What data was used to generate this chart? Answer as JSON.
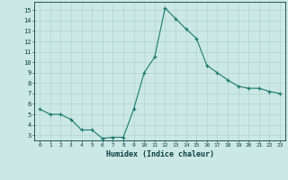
{
  "x": [
    0,
    1,
    2,
    3,
    4,
    5,
    6,
    7,
    8,
    9,
    10,
    11,
    12,
    13,
    14,
    15,
    16,
    17,
    18,
    19,
    20,
    21,
    22,
    23
  ],
  "y": [
    5.5,
    5.0,
    5.0,
    4.5,
    3.5,
    3.5,
    2.7,
    2.8,
    2.8,
    5.5,
    9.0,
    10.5,
    15.2,
    14.2,
    13.2,
    12.3,
    9.7,
    9.0,
    8.3,
    7.7,
    7.5,
    7.5,
    7.2,
    7.0
  ],
  "xlabel": "Humidex (Indice chaleur)",
  "xlim": [
    -0.5,
    23.5
  ],
  "ylim": [
    2.5,
    15.8
  ],
  "yticks": [
    3,
    4,
    5,
    6,
    7,
    8,
    9,
    10,
    11,
    12,
    13,
    14,
    15
  ],
  "xticks": [
    0,
    1,
    2,
    3,
    4,
    5,
    6,
    7,
    8,
    9,
    10,
    11,
    12,
    13,
    14,
    15,
    16,
    17,
    18,
    19,
    20,
    21,
    22,
    23
  ],
  "line_color": "#1a7a6e",
  "marker_color": "#1a7a6e",
  "bg_color": "#cce8e4",
  "grid_color": "#b0d4ce",
  "xlabel_color": "#0a4040",
  "tick_color": "#0a4040",
  "axis_color": "#0a4040"
}
